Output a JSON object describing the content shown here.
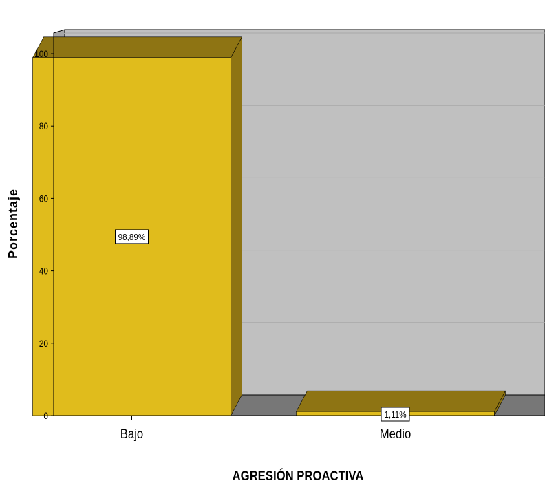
{
  "chart_data": {
    "type": "bar",
    "style": "3d",
    "categories": [
      "Bajo",
      "Medio"
    ],
    "values": [
      98.89,
      1.11
    ],
    "data_labels": [
      "98,89%",
      "1,11%"
    ],
    "xlabel": "AGRESIÓN PROACTIVA",
    "ylabel": "Porcentaje",
    "ylim": [
      0,
      100
    ],
    "yticks": [
      0,
      20,
      40,
      60,
      80,
      100
    ],
    "grid": true,
    "legend": "none",
    "colors": {
      "bar_front": "#E0BC1C",
      "bar_top": "#8E7413",
      "bar_side": "#8E7413",
      "back_wall": "#C0C0C0",
      "side_wall": "#A6A6A6",
      "floor": "#777777",
      "gridline": "#A8A8A8"
    }
  }
}
